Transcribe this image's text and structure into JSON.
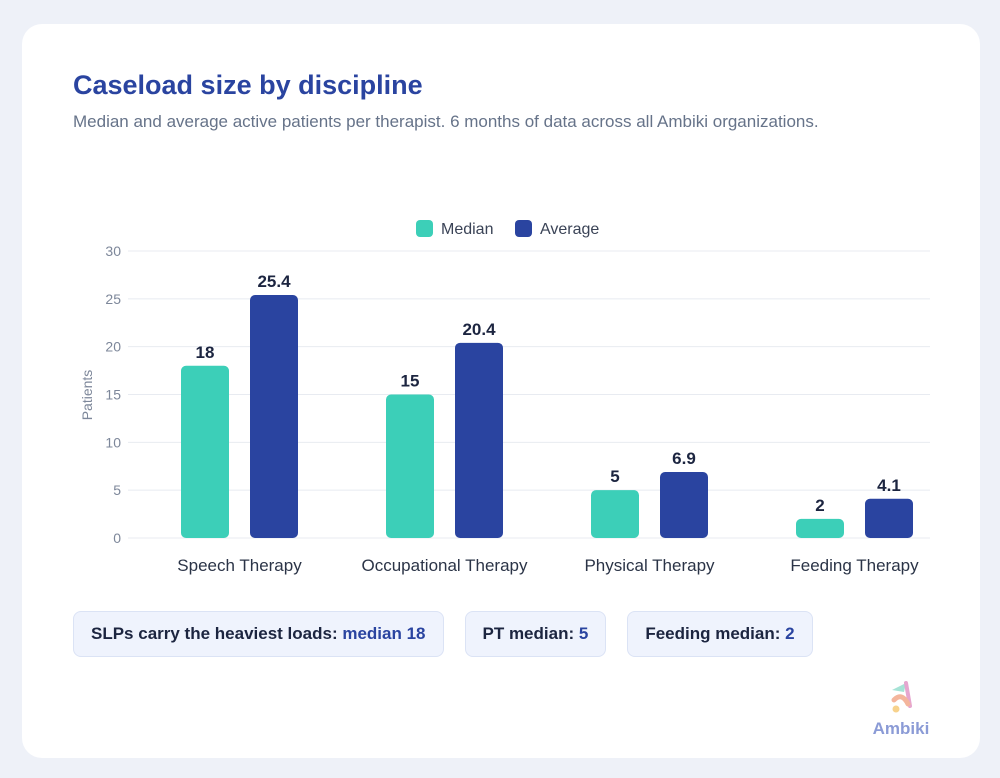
{
  "header": {
    "title": "Caseload size by discipline",
    "subtitle": "Median and average active patients per therapist. 6 months of data across all Ambiki organizations."
  },
  "chart_data": {
    "type": "bar",
    "categories": [
      "Speech Therapy",
      "Occupational Therapy",
      "Physical Therapy",
      "Feeding Therapy"
    ],
    "series": [
      {
        "name": "Median",
        "color": "#3ccfb8",
        "values": [
          18,
          15,
          5,
          2
        ]
      },
      {
        "name": "Average",
        "color": "#2a44a0",
        "values": [
          25.4,
          20.4,
          6.9,
          4.1
        ]
      }
    ],
    "data_labels": [
      [
        "18",
        "15",
        "5",
        "2"
      ],
      [
        "25.4",
        "20.4",
        "6.9",
        "4.1"
      ]
    ],
    "ylabel": "Patients",
    "ylim": [
      0,
      30
    ],
    "yticks": [
      "0",
      "5",
      "10",
      "15",
      "20",
      "25",
      "30"
    ],
    "grid": true,
    "legend": "top-center"
  },
  "callouts": [
    {
      "text": "SLPs carry the heaviest loads: ",
      "value": "median 18"
    },
    {
      "text": "PT median: ",
      "value": "5"
    },
    {
      "text": "Feeding median: ",
      "value": "2"
    }
  ],
  "brand": {
    "name": "Ambiki"
  }
}
